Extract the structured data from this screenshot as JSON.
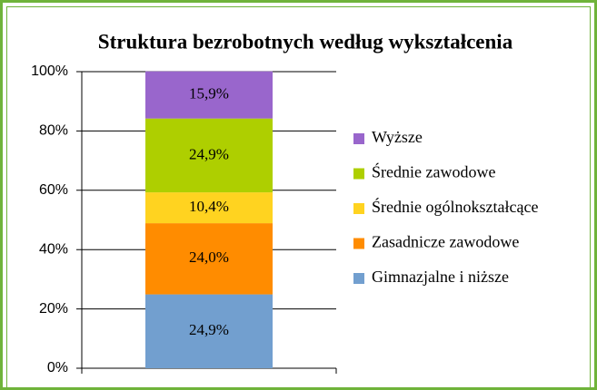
{
  "chart_data": {
    "type": "stacked_bar",
    "title": "Struktura bezrobotnych według wykształcenia",
    "categories": [
      null
    ],
    "series": [
      {
        "name": "Gimnazjalne i niższe",
        "color": "#729fcf",
        "values": [
          24.9
        ],
        "value_labels": [
          "24,9%"
        ]
      },
      {
        "name": "Zasadnicze zawodowe",
        "color": "#ff8c00",
        "values": [
          24.0
        ],
        "value_labels": [
          "24,0%"
        ]
      },
      {
        "name": "Średnie ogólnokształcące",
        "color": "#ffd320",
        "values": [
          10.4
        ],
        "value_labels": [
          "10,4%"
        ]
      },
      {
        "name": "Średnie zawodowe",
        "color": "#aecf00",
        "values": [
          24.9
        ],
        "value_labels": [
          "24,9%"
        ]
      },
      {
        "name": "Wyższe",
        "color": "#9966cc",
        "values": [
          15.9
        ],
        "value_labels": [
          "15,9%"
        ]
      }
    ],
    "ylim": [
      0,
      100
    ],
    "yticks": [
      {
        "value": 0,
        "label": "0%"
      },
      {
        "value": 20,
        "label": "20%"
      },
      {
        "value": 40,
        "label": "40%"
      },
      {
        "value": 60,
        "label": "60%"
      },
      {
        "value": 80,
        "label": "80%"
      },
      {
        "value": 100,
        "label": "100%"
      }
    ],
    "grid": true,
    "legend": "right"
  }
}
